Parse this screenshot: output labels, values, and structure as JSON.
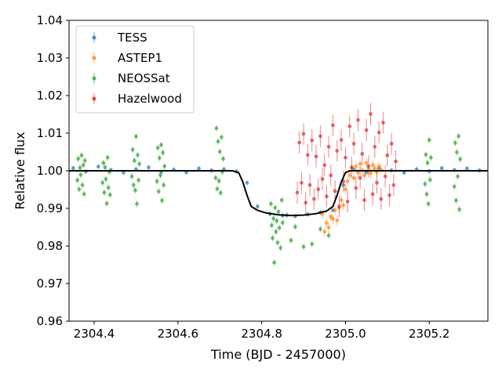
{
  "chart_data": {
    "type": "scatter",
    "title": "",
    "xlabel": "Time (BJD - 2457000)",
    "ylabel": "Relative flux",
    "xlim": [
      2304.34,
      2305.34
    ],
    "ylim": [
      0.96,
      1.04
    ],
    "x_ticks": [
      2304.4,
      2304.6,
      2304.8,
      2305.0,
      2305.2
    ],
    "x_tick_labels": [
      "2304.4",
      "2304.6",
      "2304.8",
      "2305.0",
      "2305.2"
    ],
    "y_ticks": [
      0.96,
      0.97,
      0.98,
      0.99,
      1.0,
      1.01,
      1.02,
      1.03,
      1.04
    ],
    "y_tick_labels": [
      "0.96",
      "0.97",
      "0.98",
      "0.99",
      "1.00",
      "1.01",
      "1.02",
      "1.03",
      "1.04"
    ],
    "grid": false,
    "legend_position": "top-left",
    "series": [
      {
        "name": "TESS",
        "color": "#1f77b4",
        "error_bars": true,
        "points": [
          [
            2304.35,
            1.0007
          ],
          [
            2304.38,
            0.9998
          ],
          [
            2304.41,
            1.0011
          ],
          [
            2304.44,
            1.0002
          ],
          [
            2304.47,
            0.9995
          ],
          [
            2304.5,
            1.0004
          ],
          [
            2304.53,
            1.0009
          ],
          [
            2304.56,
            0.9997
          ],
          [
            2304.59,
            1.0003
          ],
          [
            2304.62,
            0.9996
          ],
          [
            2304.65,
            1.0006
          ],
          [
            2304.68,
            1.0001
          ],
          [
            2304.71,
            1.0004
          ],
          [
            2304.74,
            0.9998
          ],
          [
            2304.765,
            0.9968
          ],
          [
            2304.79,
            0.9905
          ],
          [
            2304.82,
            0.9885
          ],
          [
            2304.85,
            0.9881
          ],
          [
            2304.88,
            0.9879
          ],
          [
            2304.91,
            0.9884
          ],
          [
            2304.94,
            0.9889
          ],
          [
            2304.97,
            0.9895
          ],
          [
            2304.995,
            0.9962
          ],
          [
            2305.02,
            1.0003
          ],
          [
            2305.05,
            0.9996
          ],
          [
            2305.08,
            1.0006
          ],
          [
            2305.11,
            1.0001
          ],
          [
            2305.14,
            0.9995
          ],
          [
            2305.17,
            1.0004
          ],
          [
            2305.2,
            0.9999
          ],
          [
            2305.23,
            1.0007
          ],
          [
            2305.26,
            1.0002
          ],
          [
            2305.29,
            1.0006
          ],
          [
            2305.32,
            1.0001
          ]
        ]
      },
      {
        "name": "ASTEP1",
        "color": "#ff7f0e",
        "error_bars": true,
        "points": [
          [
            2304.945,
            0.9885
          ],
          [
            2304.95,
            0.9838
          ],
          [
            2304.955,
            0.9861
          ],
          [
            2304.96,
            0.9849
          ],
          [
            2304.965,
            0.9878
          ],
          [
            2304.97,
            0.9872
          ],
          [
            2304.975,
            0.9895
          ],
          [
            2304.98,
            0.9868
          ],
          [
            2304.985,
            0.9901
          ],
          [
            2304.99,
            0.9922
          ],
          [
            2304.995,
            0.9908
          ],
          [
            2305.0,
            0.9951
          ],
          [
            2305.005,
            0.9972
          ],
          [
            2305.01,
            0.9988
          ],
          [
            2305.015,
            1.0008
          ],
          [
            2305.02,
            0.9981
          ],
          [
            2305.025,
            1.0012
          ],
          [
            2305.03,
            0.9995
          ],
          [
            2305.035,
            1.0018
          ],
          [
            2305.04,
            1.0001
          ],
          [
            2305.045,
            0.9988
          ],
          [
            2305.05,
            1.0021
          ],
          [
            2305.055,
            1.0004
          ],
          [
            2305.06,
            0.9993
          ],
          [
            2305.065,
            1.0015
          ],
          [
            2305.07,
            1.0007
          ],
          [
            2305.075,
            0.9997
          ],
          [
            2305.08,
            1.0012
          ],
          [
            2305.085,
            1.0003
          ]
        ]
      },
      {
        "name": "NEOSSat",
        "color": "#2ca02c",
        "error_bars": true,
        "points": [
          [
            2304.36,
            0.9975
          ],
          [
            2304.362,
            1.0032
          ],
          [
            2304.364,
            0.9951
          ],
          [
            2304.366,
            1.0008
          ],
          [
            2304.368,
            0.9989
          ],
          [
            2304.37,
            1.0041
          ],
          [
            2304.372,
            0.9962
          ],
          [
            2304.374,
            1.0015
          ],
          [
            2304.376,
            0.9938
          ],
          [
            2304.378,
            1.0027
          ],
          [
            2304.42,
            0.9968
          ],
          [
            2304.422,
            1.0021
          ],
          [
            2304.424,
            0.9942
          ],
          [
            2304.426,
            1.0009
          ],
          [
            2304.428,
            0.9978
          ],
          [
            2304.43,
            0.9913
          ],
          [
            2304.432,
            1.0035
          ],
          [
            2304.434,
            0.9955
          ],
          [
            2304.436,
            0.9997
          ],
          [
            2304.438,
            0.9936
          ],
          [
            2304.49,
            0.9985
          ],
          [
            2304.492,
            1.0056
          ],
          [
            2304.494,
            0.9962
          ],
          [
            2304.496,
            1.0027
          ],
          [
            2304.498,
            0.9948
          ],
          [
            2304.5,
            1.0091
          ],
          [
            2304.502,
            0.9912
          ],
          [
            2304.504,
            1.0042
          ],
          [
            2304.506,
            0.9975
          ],
          [
            2304.508,
            1.0018
          ],
          [
            2304.55,
            0.9972
          ],
          [
            2304.552,
            1.0061
          ],
          [
            2304.554,
            0.9945
          ],
          [
            2304.556,
            1.0034
          ],
          [
            2304.558,
            0.9988
          ],
          [
            2304.56,
            1.0069
          ],
          [
            2304.562,
            0.9921
          ],
          [
            2304.564,
            1.0048
          ],
          [
            2304.566,
            0.9962
          ],
          [
            2304.568,
            1.0012
          ],
          [
            2304.69,
            0.9981
          ],
          [
            2304.692,
            1.0113
          ],
          [
            2304.694,
            0.9952
          ],
          [
            2304.696,
            1.0078
          ],
          [
            2304.698,
            0.9973
          ],
          [
            2304.7,
            1.0051
          ],
          [
            2304.702,
            0.9941
          ],
          [
            2304.704,
            1.0089
          ],
          [
            2304.706,
            0.9997
          ],
          [
            2304.708,
            1.0032
          ],
          [
            2304.822,
            0.9912
          ],
          [
            2304.824,
            0.9855
          ],
          [
            2304.826,
            0.9821
          ],
          [
            2304.828,
            0.9873
          ],
          [
            2304.83,
            0.9756
          ],
          [
            2304.832,
            0.9902
          ],
          [
            2304.834,
            0.9838
          ],
          [
            2304.836,
            0.9867
          ],
          [
            2304.838,
            0.9809
          ],
          [
            2304.84,
            0.9891
          ],
          [
            2304.842,
            0.9848
          ],
          [
            2304.845,
            0.9795
          ],
          [
            2304.848,
            0.9922
          ],
          [
            2304.85,
            0.9862
          ],
          [
            2304.86,
            0.9882
          ],
          [
            2304.87,
            0.9815
          ],
          [
            2304.88,
            0.9851
          ],
          [
            2304.9,
            0.9798
          ],
          [
            2304.92,
            0.9805
          ],
          [
            2304.94,
            0.9845
          ],
          [
            2304.96,
            0.9828
          ],
          [
            2305.19,
            0.9965
          ],
          [
            2305.192,
            1.0043
          ],
          [
            2305.194,
            0.9938
          ],
          [
            2305.196,
            1.0021
          ],
          [
            2305.198,
            0.9912
          ],
          [
            2305.2,
            1.0082
          ],
          [
            2305.202,
            0.9976
          ],
          [
            2305.204,
            1.0035
          ],
          [
            2305.26,
            0.9958
          ],
          [
            2305.262,
            1.0074
          ],
          [
            2305.264,
            0.9921
          ],
          [
            2305.266,
            1.0049
          ],
          [
            2305.268,
            0.9985
          ],
          [
            2305.27,
            1.0092
          ],
          [
            2305.272,
            0.9897
          ],
          [
            2305.274,
            1.0031
          ]
        ]
      },
      {
        "name": "Hazelwood",
        "color": "#d62728",
        "error_bars": true,
        "points": [
          [
            2304.885,
            0.9942
          ],
          [
            2304.89,
            1.0075
          ],
          [
            2304.895,
            0.9968
          ],
          [
            2304.9,
            1.0098
          ],
          [
            2304.905,
            0.9915
          ],
          [
            2304.91,
            1.0042
          ],
          [
            2304.915,
            0.9962
          ],
          [
            2304.92,
            1.0081
          ],
          [
            2304.925,
            0.9925
          ],
          [
            2304.93,
            1.0038
          ],
          [
            2304.935,
            0.9951
          ],
          [
            2304.94,
            1.0092
          ],
          [
            2304.945,
            0.9978
          ],
          [
            2304.95,
            1.0015
          ],
          [
            2304.955,
            0.9932
          ],
          [
            2304.96,
            1.0064
          ],
          [
            2304.965,
            0.9988
          ],
          [
            2304.97,
            1.0121
          ],
          [
            2304.975,
            0.9946
          ],
          [
            2304.98,
            1.0053
          ],
          [
            2304.985,
            0.9905
          ],
          [
            2304.99,
            1.0082
          ],
          [
            2304.995,
            0.9972
          ],
          [
            2305.0,
            1.0035
          ],
          [
            2305.005,
            0.9918
          ],
          [
            2305.01,
            1.0118
          ],
          [
            2305.015,
            1.0009
          ],
          [
            2305.02,
            1.0072
          ],
          [
            2305.025,
            0.9954
          ],
          [
            2305.03,
            1.0135
          ],
          [
            2305.035,
            0.9981
          ],
          [
            2305.04,
            1.0045
          ],
          [
            2305.045,
            0.9922
          ],
          [
            2305.05,
            1.0108
          ],
          [
            2305.055,
            1.0012
          ],
          [
            2305.06,
            1.0151
          ],
          [
            2305.065,
            0.9938
          ],
          [
            2305.07,
            1.0064
          ],
          [
            2305.075,
            0.9968
          ],
          [
            2305.08,
            1.0102
          ],
          [
            2305.085,
            0.9925
          ],
          [
            2305.09,
            1.0128
          ],
          [
            2305.095,
            0.9985
          ],
          [
            2305.1,
            1.0041
          ],
          [
            2305.105,
            0.9935
          ],
          [
            2305.11,
            1.0072
          ],
          [
            2305.115,
            0.9962
          ],
          [
            2305.12,
            1.0025
          ]
        ]
      },
      {
        "name": "model",
        "color": "#000000",
        "style": "line",
        "points": [
          [
            2304.34,
            1.0
          ],
          [
            2304.73,
            1.0
          ],
          [
            2304.745,
            0.9995
          ],
          [
            2304.755,
            0.997
          ],
          [
            2304.765,
            0.9935
          ],
          [
            2304.775,
            0.9905
          ],
          [
            2304.79,
            0.9895
          ],
          [
            2304.81,
            0.9888
          ],
          [
            2304.84,
            0.9883
          ],
          [
            2304.87,
            0.9881
          ],
          [
            2304.9,
            0.9882
          ],
          [
            2304.93,
            0.9886
          ],
          [
            2304.955,
            0.9893
          ],
          [
            2304.97,
            0.9905
          ],
          [
            2304.98,
            0.9935
          ],
          [
            2304.99,
            0.997
          ],
          [
            2305.0,
            0.9995
          ],
          [
            2305.01,
            1.0
          ],
          [
            2305.34,
            1.0
          ]
        ]
      }
    ]
  }
}
